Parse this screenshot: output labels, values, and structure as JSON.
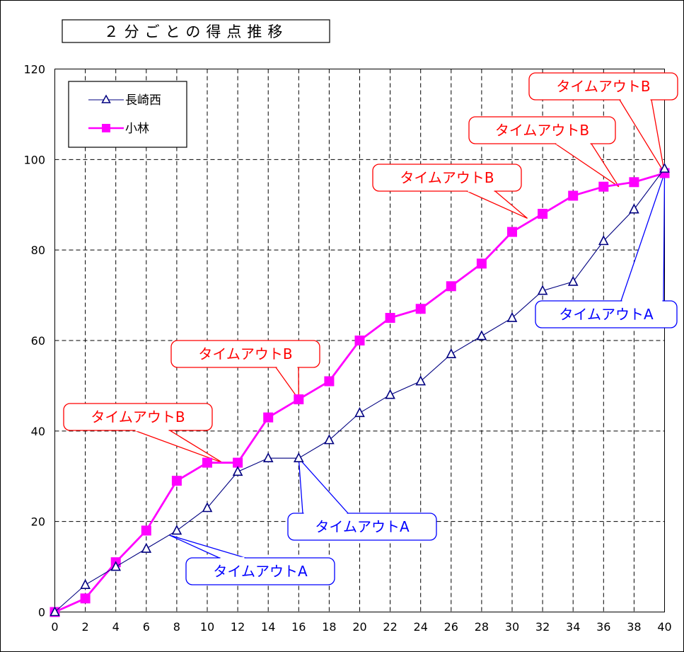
{
  "chart_data": {
    "type": "line",
    "title": "２分ごとの得点推移",
    "xlabel": "",
    "ylabel": "",
    "x": [
      0,
      2,
      4,
      6,
      8,
      10,
      12,
      14,
      16,
      18,
      20,
      22,
      24,
      26,
      28,
      30,
      32,
      34,
      36,
      38,
      40
    ],
    "xlim": [
      0,
      40
    ],
    "ylim": [
      0,
      120
    ],
    "y_ticks": [
      0,
      20,
      40,
      60,
      80,
      100,
      120
    ],
    "grid": true,
    "legend_position": "top-left",
    "series": [
      {
        "name": "長崎西",
        "color": "#000080",
        "marker": "triangle-open",
        "values": [
          0,
          6,
          10,
          14,
          18,
          23,
          31,
          34,
          34,
          38,
          44,
          48,
          51,
          57,
          61,
          65,
          71,
          73,
          82,
          89,
          98
        ]
      },
      {
        "name": "小林",
        "color": "#ff00ff",
        "marker": "square",
        "values": [
          0,
          3,
          11,
          18,
          29,
          33,
          33,
          43,
          47,
          51,
          60,
          65,
          67,
          72,
          77,
          84,
          88,
          92,
          94,
          95,
          97
        ]
      }
    ],
    "annotations": [
      {
        "text": "タイムアウトB",
        "color": "#ff0000",
        "target": [
          11,
          33
        ]
      },
      {
        "text": "タイムアウトB",
        "color": "#ff0000",
        "target": [
          16,
          47
        ]
      },
      {
        "text": "タイムアウトB",
        "color": "#ff0000",
        "target": [
          31,
          87
        ]
      },
      {
        "text": "タイムアウトB",
        "color": "#ff0000",
        "target": [
          37,
          94
        ]
      },
      {
        "text": "タイムアウトB",
        "color": "#ff0000",
        "target": [
          40,
          97
        ]
      },
      {
        "text": "タイムアウトA",
        "color": "#0000ff",
        "target": [
          7.5,
          17
        ]
      },
      {
        "text": "タイムアウトA",
        "color": "#0000ff",
        "target": [
          16,
          34
        ]
      },
      {
        "text": "タイムアウトA",
        "color": "#0000ff",
        "target": [
          40,
          97
        ]
      }
    ]
  }
}
